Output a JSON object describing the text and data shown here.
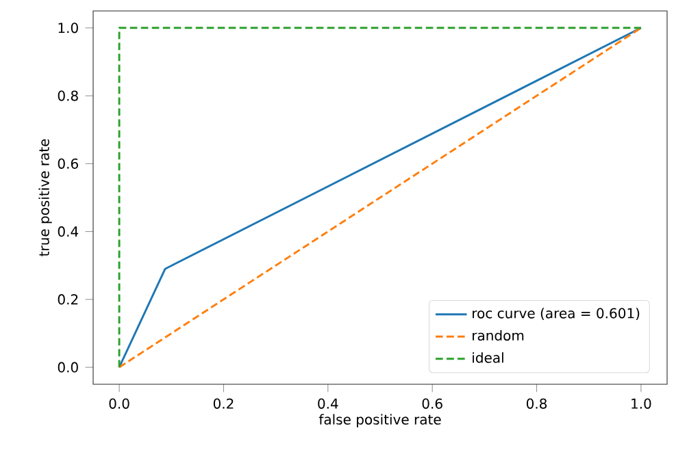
{
  "chart_data": {
    "type": "line",
    "xlabel": "false positive rate",
    "ylabel": "true positive rate",
    "series": [
      {
        "name": "roc curve (area = 0.601)",
        "color": "#1f77b4",
        "line_style": "solid",
        "x": [
          0,
          0.088,
          1
        ],
        "values": [
          0,
          0.29,
          1
        ]
      },
      {
        "name": "random",
        "color": "#ff7f0e",
        "line_style": "dashed",
        "x": [
          0,
          1
        ],
        "values": [
          0,
          1
        ]
      },
      {
        "name": "ideal",
        "color": "#2ca02c",
        "line_style": "dashed",
        "x": [
          0,
          0,
          1
        ],
        "values": [
          0,
          1,
          1
        ]
      }
    ],
    "xlim": [
      -0.05,
      1.05
    ],
    "ylim": [
      -0.05,
      1.05
    ],
    "xticks": [
      {
        "value": 0,
        "label": "0.0"
      },
      {
        "value": 0.2,
        "label": "0.2"
      },
      {
        "value": 0.4,
        "label": "0.4"
      },
      {
        "value": 0.6,
        "label": "0.6"
      },
      {
        "value": 0.8,
        "label": "0.8"
      },
      {
        "value": 1,
        "label": "1.0"
      }
    ],
    "yticks": [
      {
        "value": 0,
        "label": "0.0"
      },
      {
        "value": 0.2,
        "label": "0.2"
      },
      {
        "value": 0.4,
        "label": "0.4"
      },
      {
        "value": 0.6,
        "label": "0.6"
      },
      {
        "value": 0.8,
        "label": "0.8"
      },
      {
        "value": 1,
        "label": "1.0"
      }
    ],
    "legend": "bottom right",
    "grid": false,
    "marker": "none"
  }
}
